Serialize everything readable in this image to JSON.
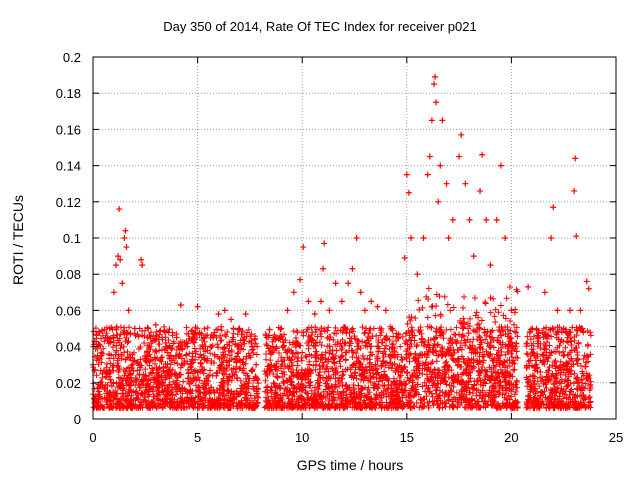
{
  "chart_data": {
    "type": "scatter",
    "title": "Day 350 of 2014, Rate Of TEC Index for receiver p021",
    "xlabel": "GPS time / hours",
    "ylabel": "ROTI / TECUs",
    "xlim": [
      0,
      25
    ],
    "ylim": [
      0,
      0.2
    ],
    "x_ticks": [
      "0",
      "5",
      "10",
      "15",
      "20",
      "25"
    ],
    "y_ticks": [
      "0",
      "0.02",
      "0.04",
      "0.06",
      "0.08",
      "0.1",
      "0.12",
      "0.14",
      "0.16",
      "0.18",
      "0.2"
    ],
    "grid": true,
    "marker": "+",
    "color": "#ff0000",
    "data_gaps_hours": [
      [
        7.9,
        8.2
      ],
      [
        20.3,
        20.7
      ]
    ],
    "series": [
      {
        "points": [
          [
            0.0,
            0.03
          ],
          [
            0.2,
            0.04
          ],
          [
            0.4,
            0.035
          ],
          [
            0.6,
            0.045
          ],
          [
            0.8,
            0.05
          ],
          [
            1.0,
            0.07
          ],
          [
            1.1,
            0.085
          ],
          [
            1.2,
            0.09
          ],
          [
            1.25,
            0.116
          ],
          [
            1.3,
            0.088
          ],
          [
            1.4,
            0.075
          ],
          [
            1.5,
            0.1
          ],
          [
            1.55,
            0.104
          ],
          [
            1.6,
            0.095
          ],
          [
            1.7,
            0.06
          ],
          [
            2.0,
            0.05
          ],
          [
            2.3,
            0.088
          ],
          [
            2.35,
            0.085
          ],
          [
            2.6,
            0.045
          ],
          [
            3.0,
            0.052
          ],
          [
            3.5,
            0.04
          ],
          [
            4.0,
            0.045
          ],
          [
            4.2,
            0.063
          ],
          [
            4.5,
            0.04
          ],
          [
            5.0,
            0.062
          ],
          [
            5.3,
            0.045
          ],
          [
            5.6,
            0.04
          ],
          [
            6.0,
            0.058
          ],
          [
            6.3,
            0.06
          ],
          [
            6.6,
            0.055
          ],
          [
            7.0,
            0.05
          ],
          [
            7.3,
            0.058
          ],
          [
            7.6,
            0.04
          ],
          [
            7.8,
            0.03
          ],
          [
            8.3,
            0.045
          ],
          [
            8.6,
            0.04
          ],
          [
            9.0,
            0.05
          ],
          [
            9.3,
            0.06
          ],
          [
            9.6,
            0.07
          ],
          [
            9.9,
            0.077
          ],
          [
            10.05,
            0.095
          ],
          [
            10.3,
            0.065
          ],
          [
            10.6,
            0.058
          ],
          [
            10.9,
            0.065
          ],
          [
            11.0,
            0.083
          ],
          [
            11.05,
            0.097
          ],
          [
            11.3,
            0.06
          ],
          [
            11.6,
            0.075
          ],
          [
            11.9,
            0.065
          ],
          [
            12.2,
            0.075
          ],
          [
            12.4,
            0.083
          ],
          [
            12.6,
            0.1
          ],
          [
            12.8,
            0.07
          ],
          [
            13.0,
            0.06
          ],
          [
            13.3,
            0.065
          ],
          [
            13.6,
            0.062
          ],
          [
            14.0,
            0.06
          ],
          [
            14.3,
            0.05
          ],
          [
            14.6,
            0.045
          ],
          [
            14.9,
            0.089
          ],
          [
            15.0,
            0.135
          ],
          [
            15.1,
            0.125
          ],
          [
            15.2,
            0.1
          ],
          [
            15.5,
            0.08
          ],
          [
            15.8,
            0.1
          ],
          [
            16.0,
            0.135
          ],
          [
            16.1,
            0.145
          ],
          [
            16.2,
            0.165
          ],
          [
            16.3,
            0.185
          ],
          [
            16.35,
            0.189
          ],
          [
            16.4,
            0.175
          ],
          [
            16.5,
            0.12
          ],
          [
            16.6,
            0.14
          ],
          [
            16.7,
            0.165
          ],
          [
            16.9,
            0.13
          ],
          [
            17.0,
            0.1
          ],
          [
            17.2,
            0.11
          ],
          [
            17.5,
            0.145
          ],
          [
            17.6,
            0.157
          ],
          [
            17.8,
            0.13
          ],
          [
            18.0,
            0.11
          ],
          [
            18.2,
            0.09
          ],
          [
            18.5,
            0.126
          ],
          [
            18.6,
            0.146
          ],
          [
            18.8,
            0.11
          ],
          [
            19.0,
            0.085
          ],
          [
            19.3,
            0.11
          ],
          [
            19.5,
            0.14
          ],
          [
            19.7,
            0.1
          ],
          [
            20.0,
            0.06
          ],
          [
            20.2,
            0.04
          ],
          [
            20.8,
            0.073
          ],
          [
            21.0,
            0.05
          ],
          [
            21.3,
            0.045
          ],
          [
            21.6,
            0.07
          ],
          [
            21.9,
            0.1
          ],
          [
            22.0,
            0.117
          ],
          [
            22.2,
            0.06
          ],
          [
            22.5,
            0.05
          ],
          [
            22.8,
            0.06
          ],
          [
            23.0,
            0.126
          ],
          [
            23.05,
            0.144
          ],
          [
            23.1,
            0.101
          ],
          [
            23.3,
            0.06
          ],
          [
            23.6,
            0.076
          ],
          [
            23.7,
            0.072
          ]
        ]
      }
    ]
  }
}
